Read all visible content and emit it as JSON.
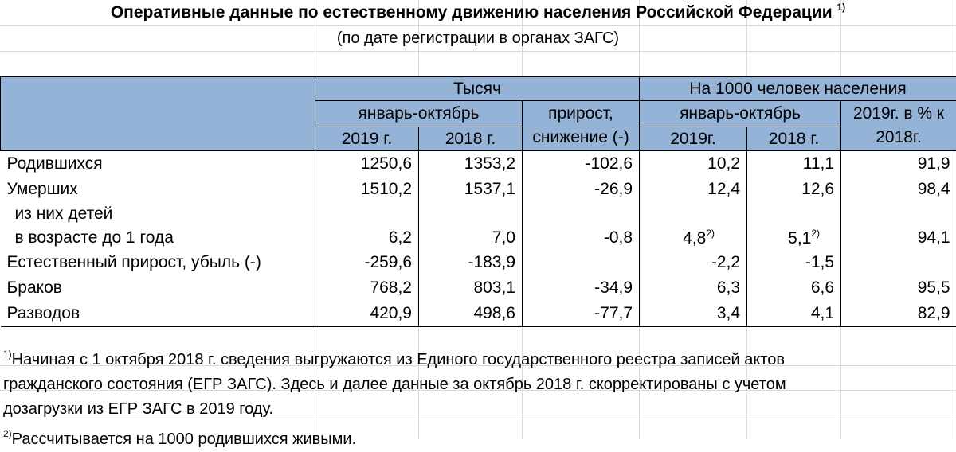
{
  "title": "Оперативные данные по естественному движению населения Российской Федерации",
  "title_note_mark": "1)",
  "subtitle": "(по дате регистрации в органах ЗАГС)",
  "header": {
    "group_thousands": "Тысяч",
    "group_per_1000": "На 1000 человек населения",
    "jan_oct_left": "январь-октябрь",
    "jan_oct_right": "январь-октябрь",
    "change": "прирост, снижение (-)",
    "y2019_left": "2019 г.",
    "y2018_left": "2018 г.",
    "y2019_right": "2019г.",
    "y2018_right": "2018 г.",
    "pct": "2019г. в % к 2018г."
  },
  "rows": [
    {
      "label": "Родившихся",
      "t2019": "1250,6",
      "t2018": "1353,2",
      "change": "-102,6",
      "p2019": "10,2",
      "p2018": "11,1",
      "pct": "91,9"
    },
    {
      "label": "Умерших",
      "t2019": "1510,2",
      "t2018": "1537,1",
      "change": "-26,9",
      "p2019": "12,4",
      "p2018": "12,6",
      "pct": "98,4"
    },
    {
      "label": "из них детей"
    },
    {
      "label": "в возрасте до 1 года",
      "t2019": "6,2",
      "t2018": "7,0",
      "change": "-0,8",
      "p2019": "4,8",
      "p2019_note": "2)",
      "p2018": "5,1",
      "p2018_note": "2)",
      "pct": "94,1"
    },
    {
      "label": "Естественный прирост, убыль (-)",
      "t2019": "-259,6",
      "t2018": "-183,9",
      "change": "",
      "p2019": "-2,2",
      "p2018": "-1,5",
      "pct": ""
    },
    {
      "label": "Браков",
      "t2019": "768,2",
      "t2018": "803,1",
      "change": "-34,9",
      "p2019": "6,3",
      "p2018": "6,6",
      "pct": "95,5"
    },
    {
      "label": "Разводов",
      "t2019": "420,9",
      "t2018": "498,6",
      "change": "-77,7",
      "p2019": "3,4",
      "p2018": "4,1",
      "pct": "82,9"
    }
  ],
  "notes": {
    "n1_mark": "1)",
    "n1_line1": "Начиная с 1 октября 2018 г. сведения выгружаются из Единого государственного реестра записей актов",
    "n1_line2": "гражданского состояния (ЕГР ЗАГС). Здесь и далее данные за октябрь 2018 г. скорректированы с учетом",
    "n1_line3": "дозагрузки из ЕГР ЗАГС в  2019 году.",
    "n2_mark": "2)",
    "n2_line1": "Рассчитывается на 1000 родившихся живыми."
  }
}
